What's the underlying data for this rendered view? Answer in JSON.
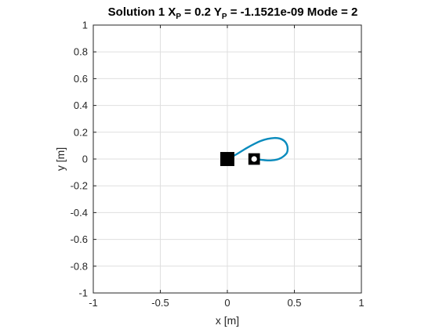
{
  "chart_data": {
    "type": "line",
    "title": {
      "prefix": "Solution 1 X",
      "xp_sub": "P",
      "xp_value": " = 0.2 Y",
      "yp_sub": "P",
      "yp_value": " = -1.1521e-09 Mode = 2"
    },
    "xlabel": "x [m]",
    "ylabel": "y [m]",
    "xlim": [
      -1,
      1
    ],
    "ylim": [
      -1,
      1
    ],
    "grid": true,
    "x_ticks": [
      -1,
      -0.5,
      0,
      0.5,
      1
    ],
    "x_tick_labels": [
      "-1",
      "-0.5",
      "0",
      "0.5",
      "1"
    ],
    "y_ticks": [
      -1,
      -0.8,
      -0.6,
      -0.4,
      -0.2,
      0,
      0.2,
      0.4,
      0.6,
      0.8,
      1
    ],
    "y_tick_labels": [
      "-1",
      "-0.8",
      "-0.6",
      "-0.4",
      "-0.2",
      "0",
      "0.2",
      "0.4",
      "0.6",
      "0.8",
      "1"
    ],
    "series": [
      {
        "name": "link-curve",
        "color": "#0a8bbd",
        "points": [
          [
            0.0,
            0.0
          ],
          [
            0.05,
            0.025
          ],
          [
            0.1,
            0.055
          ],
          [
            0.15,
            0.085
          ],
          [
            0.2,
            0.112
          ],
          [
            0.25,
            0.135
          ],
          [
            0.3,
            0.15
          ],
          [
            0.35,
            0.157
          ],
          [
            0.39,
            0.153
          ],
          [
            0.425,
            0.135
          ],
          [
            0.445,
            0.105
          ],
          [
            0.45,
            0.075
          ],
          [
            0.445,
            0.048
          ],
          [
            0.425,
            0.025
          ],
          [
            0.4,
            0.008
          ],
          [
            0.37,
            -0.004
          ],
          [
            0.33,
            -0.01
          ],
          [
            0.29,
            -0.01
          ],
          [
            0.255,
            -0.006
          ],
          [
            0.225,
            -0.002
          ],
          [
            0.2,
            0.0
          ]
        ]
      }
    ],
    "markers": [
      {
        "name": "base-joint",
        "x": 0.0,
        "y": 0.0,
        "shape": "square",
        "color": "#000000",
        "size_data": 0.105
      },
      {
        "name": "end-effector",
        "x": 0.2,
        "y": 0.0,
        "shape": "square-with-dot",
        "color": "#000000",
        "dot_color": "#ffffff",
        "size_data": 0.105
      }
    ]
  }
}
